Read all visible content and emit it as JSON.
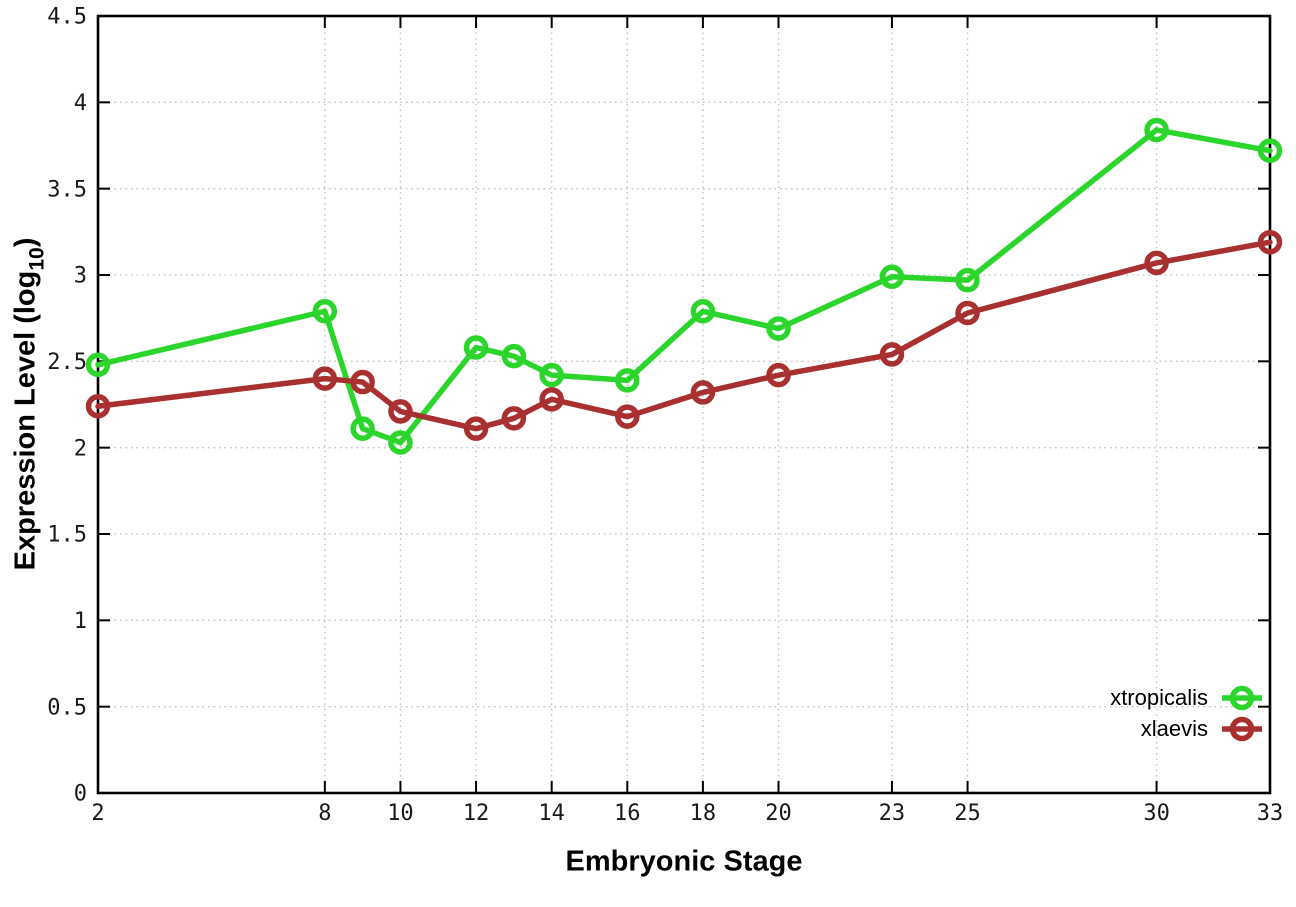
{
  "figure": {
    "background": "#ffffff",
    "border_color": "#000000",
    "grid_color": "#bdbdbd",
    "tick_label_color": "#1a1a1a"
  },
  "chart_data": {
    "type": "line",
    "title": "",
    "xlabel": "Embryonic Stage",
    "ylabel": "Expression Level (log10)",
    "ylabel_parts": {
      "main": "Expression Level (log",
      "sub": "10",
      "close": ")"
    },
    "x": [
      2,
      8,
      9,
      10,
      12,
      13,
      14,
      16,
      18,
      20,
      23,
      25,
      30,
      33
    ],
    "xlim": [
      2,
      33
    ],
    "ylim": [
      0,
      4.5
    ],
    "xticks": {
      "values": [
        2,
        8,
        10,
        12,
        14,
        16,
        18,
        20,
        23,
        25,
        30,
        33
      ],
      "labels": [
        "2",
        "8",
        "10",
        "12",
        "14",
        "16",
        "18",
        "20",
        "23",
        "25",
        "30",
        "33"
      ]
    },
    "yticks": {
      "values": [
        0,
        0.5,
        1,
        1.5,
        2,
        2.5,
        3,
        3.5,
        4,
        4.5
      ],
      "labels": [
        "0",
        "0.5",
        "1",
        "1.5",
        "2",
        "2.5",
        "3",
        "3.5",
        "4",
        "4.5"
      ]
    },
    "grid": true,
    "legend": {
      "position": "inside-bottom-right"
    },
    "series": [
      {
        "name": "xtropicalis",
        "color": "#2bd52b",
        "marker": "open-circle",
        "values": [
          2.48,
          2.79,
          2.11,
          2.03,
          2.58,
          2.53,
          2.42,
          2.39,
          2.79,
          2.69,
          2.99,
          2.97,
          3.84,
          3.72
        ]
      },
      {
        "name": "xlaevis",
        "color": "#a93030",
        "marker": "open-circle",
        "values": [
          2.24,
          2.4,
          2.38,
          2.21,
          2.11,
          2.17,
          2.28,
          2.18,
          2.32,
          2.42,
          2.54,
          2.78,
          3.07,
          3.19
        ]
      }
    ]
  }
}
